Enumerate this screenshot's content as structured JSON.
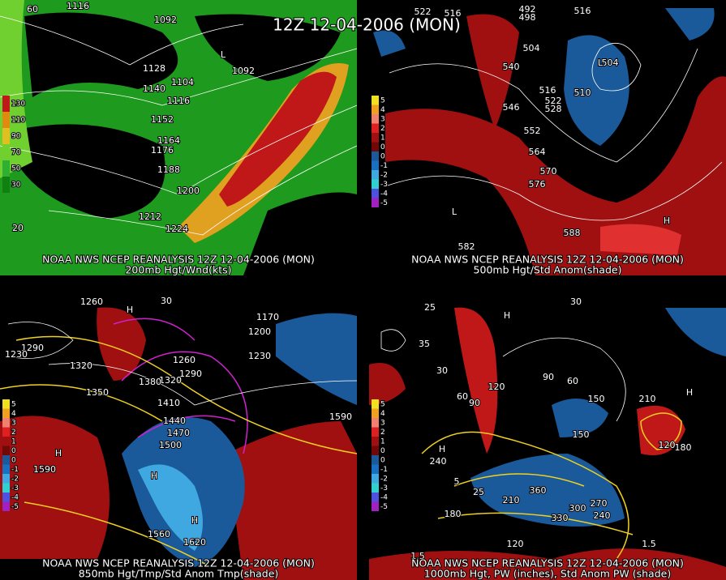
{
  "title": "12Z 12-04-2006 (MON)",
  "panels": [
    {
      "source": "NOAA NWS NCEP REANALYSIS 12Z 12-04-2006 (MON)",
      "caption": "200mb Hgt/Wnd(kts)",
      "scale": [
        "130",
        "110",
        "90",
        "70",
        "50",
        "30"
      ],
      "labels": [
        "60",
        "1116",
        "1092",
        "L",
        "1092",
        "1128",
        "1104",
        "1140",
        "1116",
        "1152",
        "1164",
        "1176",
        "1188",
        "1200",
        "1212",
        "1224",
        "20"
      ]
    },
    {
      "source": "NOAA NWS NCEP REANALYSIS 12Z 12-04-2006 (MON)",
      "caption": "500mb Hgt/Std Anom(shade)",
      "scale": [
        "5",
        "4",
        "3",
        "2",
        "1",
        "0",
        "0",
        "-1",
        "-2",
        "-3",
        "-4",
        "-5"
      ],
      "labels": [
        "522",
        "516",
        "492",
        "498",
        "516",
        "504",
        "540",
        "546",
        "516",
        "522",
        "528",
        "510",
        "504",
        "552",
        "564",
        "570",
        "576",
        "588",
        "582",
        "L",
        "L",
        "H"
      ]
    },
    {
      "source": "NOAA NWS NCEP REANALYSIS 12Z 12-04-2006 (MON)",
      "caption": "850mb Hgt/Tmp/Std Anom Tmp(shade)",
      "scale": [
        "5",
        "4",
        "3",
        "2",
        "1",
        "0",
        "0",
        "-1",
        "-2",
        "-3",
        "-4",
        "-5"
      ],
      "labels": [
        "1260",
        "H",
        "30",
        "1290",
        "1320",
        "1350",
        "1230",
        "1170",
        "1200",
        "1230",
        "1260",
        "1290",
        "1320",
        "1380",
        "1410",
        "1440",
        "1470",
        "1500",
        "1590",
        "1590",
        "H",
        "H",
        "H",
        "1560",
        "1620"
      ]
    },
    {
      "source": "NOAA NWS NCEP REANALYSIS 12Z 12-04-2006 (MON)",
      "caption": "1000mb Hgt, PW (inches), Std Anom PW (shade)",
      "scale": [
        "5",
        "4",
        "3",
        "2",
        "1",
        "0",
        "0",
        "-1",
        "-2",
        "-3",
        "-4",
        "-5"
      ],
      "labels": [
        "25",
        "35",
        "30",
        "60",
        "90",
        "120",
        "90",
        "60",
        "150",
        "150",
        "210",
        "180",
        "120",
        "240",
        "H",
        "H",
        "H",
        "360",
        "210",
        "270",
        "300",
        "330",
        "240",
        "180",
        "25",
        "5",
        "1.5",
        "120",
        "1.5",
        "30"
      ]
    }
  ]
}
